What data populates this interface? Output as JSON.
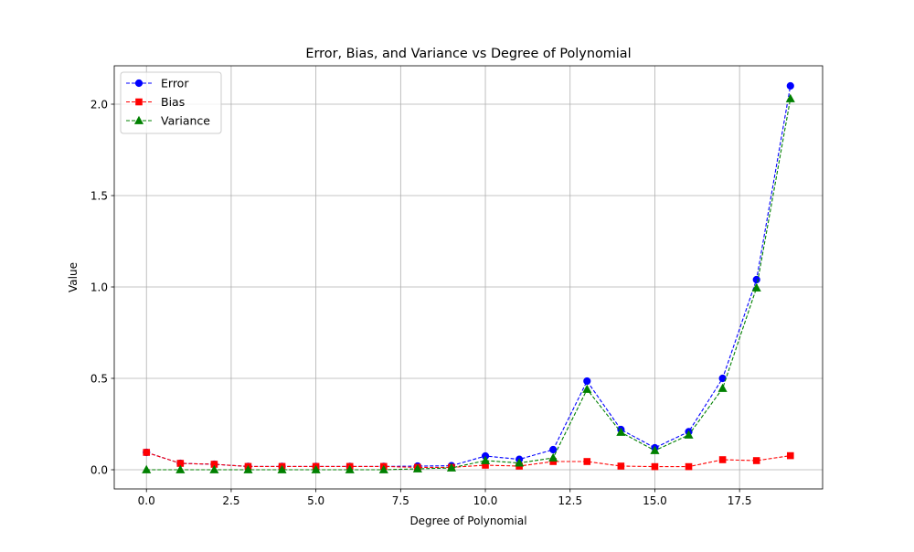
{
  "chart_data": {
    "type": "line",
    "title": "Error, Bias, and Variance vs Degree of Polynomial",
    "xlabel": "Degree of Polynomial",
    "ylabel": "Value",
    "x": [
      0,
      1,
      2,
      3,
      4,
      5,
      6,
      7,
      8,
      9,
      10,
      11,
      12,
      13,
      14,
      15,
      16,
      17,
      18,
      19
    ],
    "xlim": [
      -0.95,
      19.95
    ],
    "ylim": [
      -0.105,
      2.21
    ],
    "xticks": [
      "0.0",
      "2.5",
      "5.0",
      "7.5",
      "10.0",
      "12.5",
      "15.0",
      "17.5"
    ],
    "xtick_values": [
      0,
      2.5,
      5,
      7.5,
      10,
      12.5,
      15,
      17.5
    ],
    "yticks": [
      "0.0",
      "0.5",
      "1.0",
      "1.5",
      "2.0"
    ],
    "ytick_values": [
      0,
      0.5,
      1.0,
      1.5,
      2.0
    ],
    "grid": true,
    "legend_position": "upper-left",
    "series": [
      {
        "name": "Error",
        "color": "#0000ff",
        "marker": "circle",
        "values": [
          0.095,
          0.035,
          0.03,
          0.018,
          0.018,
          0.018,
          0.018,
          0.018,
          0.02,
          0.022,
          0.075,
          0.057,
          0.11,
          0.485,
          0.22,
          0.12,
          0.208,
          0.5,
          1.04,
          2.1
        ]
      },
      {
        "name": "Bias",
        "color": "#ff0000",
        "marker": "square",
        "values": [
          0.095,
          0.035,
          0.03,
          0.018,
          0.018,
          0.018,
          0.018,
          0.018,
          0.013,
          0.013,
          0.025,
          0.02,
          0.045,
          0.045,
          0.02,
          0.017,
          0.017,
          0.055,
          0.05,
          0.077
        ]
      },
      {
        "name": "Variance",
        "color": "#008000",
        "marker": "triangle",
        "values": [
          0.0,
          0.0,
          0.0,
          0.0,
          0.0,
          0.0,
          0.0,
          0.0,
          0.005,
          0.01,
          0.05,
          0.037,
          0.065,
          0.44,
          0.205,
          0.105,
          0.19,
          0.445,
          0.995,
          2.03
        ]
      }
    ]
  }
}
